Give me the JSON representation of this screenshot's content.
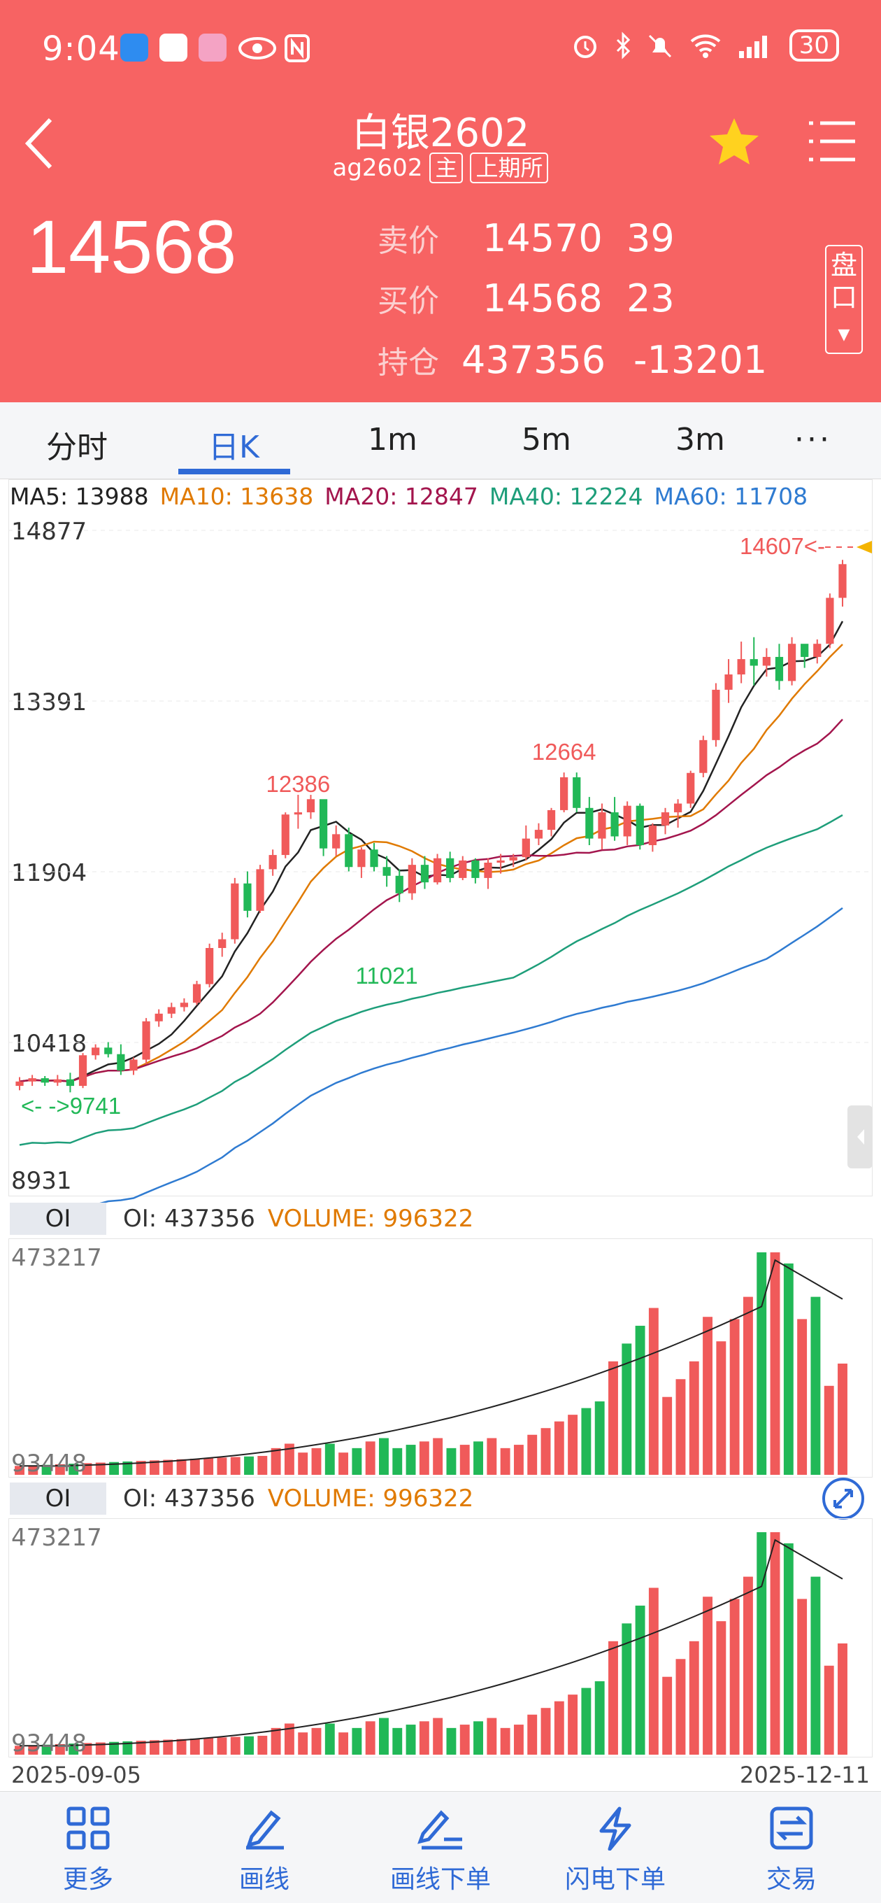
{
  "status_bar": {
    "time": "9:04",
    "battery": "30"
  },
  "header": {
    "title": "白银2602",
    "code": "ag2602",
    "tag_main": "主",
    "tag_exchange": "上期所",
    "menu_icon": "menu-icon",
    "star_icon": "star-icon"
  },
  "quote": {
    "last_price": "14568",
    "rows": [
      {
        "label": "卖价",
        "price": "14570",
        "qty": "39"
      },
      {
        "label": "买价",
        "price": "14568",
        "qty": "23"
      },
      {
        "label": "持仓",
        "price": "437356",
        "qty": "-13201"
      }
    ],
    "pan_label": "盘口"
  },
  "tabs": [
    "分时",
    "日K",
    "1m",
    "5m",
    "3m",
    "···"
  ],
  "ma_legend": [
    {
      "label": "MA5: 13988",
      "color": "#222222"
    },
    {
      "label": "MA10: 13638",
      "color": "#e07a00"
    },
    {
      "label": "MA20: 12847",
      "color": "#a3154d"
    },
    {
      "label": "MA40: 12224",
      "color": "#1e9e7a"
    },
    {
      "label": "MA60: 11708",
      "color": "#2f7bd1"
    }
  ],
  "colors": {
    "up": "#f05a5a",
    "down": "#21b857",
    "header": "#f76363",
    "accent": "#2f6ad6"
  },
  "chart_data": {
    "type": "candlestick",
    "y_ticks": [
      "14877",
      "13391",
      "11904",
      "10418",
      "8931"
    ],
    "ylim": [
      8931,
      14877
    ],
    "annotations": {
      "high_1": "12386",
      "high_2": "12664",
      "low_1": "11021",
      "low_start": "<- ->9741",
      "last_marker": "14607<-"
    },
    "candles": [
      [
        9800,
        9880,
        9760,
        9840
      ],
      [
        9840,
        9900,
        9800,
        9870
      ],
      [
        9870,
        9890,
        9800,
        9830
      ],
      [
        9830,
        9900,
        9800,
        9860
      ],
      [
        9860,
        9920,
        9741,
        9800
      ],
      [
        9800,
        10100,
        9780,
        10080
      ],
      [
        10080,
        10180,
        10040,
        10150
      ],
      [
        10150,
        10200,
        10060,
        10090
      ],
      [
        10090,
        10180,
        9900,
        9940
      ],
      [
        9940,
        10060,
        9900,
        10040
      ],
      [
        10040,
        10420,
        10000,
        10390
      ],
      [
        10390,
        10500,
        10340,
        10460
      ],
      [
        10460,
        10560,
        10420,
        10520
      ],
      [
        10520,
        10600,
        10480,
        10560
      ],
      [
        10560,
        10760,
        10540,
        10730
      ],
      [
        10730,
        11100,
        10700,
        11060
      ],
      [
        11060,
        11200,
        10980,
        11140
      ],
      [
        11140,
        11700,
        11100,
        11650
      ],
      [
        11650,
        11760,
        11340,
        11400
      ],
      [
        11400,
        11820,
        11380,
        11780
      ],
      [
        11780,
        11960,
        11720,
        11910
      ],
      [
        11910,
        12300,
        11880,
        12280
      ],
      [
        12280,
        12460,
        12150,
        12300
      ],
      [
        12300,
        12460,
        12240,
        12420
      ],
      [
        12420,
        12386,
        11900,
        11970
      ],
      [
        11970,
        12180,
        11900,
        12100
      ],
      [
        12100,
        12160,
        11760,
        11800
      ],
      [
        11800,
        11980,
        11700,
        11960
      ],
      [
        11960,
        12020,
        11760,
        11800
      ],
      [
        11800,
        11900,
        11620,
        11720
      ],
      [
        11720,
        11780,
        11480,
        11560
      ],
      [
        11560,
        11880,
        11500,
        11820
      ],
      [
        11820,
        11900,
        11600,
        11660
      ],
      [
        11660,
        11920,
        11640,
        11880
      ],
      [
        11880,
        11940,
        11660,
        11700
      ],
      [
        11700,
        11900,
        11680,
        11860
      ],
      [
        11860,
        11880,
        11650,
        11700
      ],
      [
        11700,
        11880,
        11600,
        11840
      ],
      [
        11840,
        11920,
        11740,
        11860
      ],
      [
        11860,
        11920,
        11800,
        11890
      ],
      [
        11890,
        12180,
        11860,
        12060
      ],
      [
        12060,
        12200,
        12000,
        12140
      ],
      [
        12140,
        12340,
        12080,
        12320
      ],
      [
        12320,
        12664,
        12300,
        12620
      ],
      [
        12620,
        12664,
        12300,
        12340
      ],
      [
        12340,
        12440,
        12000,
        12060
      ],
      [
        12060,
        12380,
        11960,
        12300
      ],
      [
        12300,
        12440,
        12040,
        12080
      ],
      [
        12080,
        12400,
        12000,
        12360
      ],
      [
        12360,
        12380,
        11960,
        12000
      ],
      [
        12000,
        12200,
        11940,
        12180
      ],
      [
        12180,
        12340,
        12100,
        12300
      ],
      [
        12300,
        12420,
        12160,
        12380
      ],
      [
        12380,
        12680,
        12340,
        12660
      ],
      [
        12660,
        13000,
        12620,
        12960
      ],
      [
        12960,
        13480,
        12900,
        13420
      ],
      [
        13420,
        13700,
        13300,
        13560
      ],
      [
        13560,
        13860,
        13480,
        13700
      ],
      [
        13700,
        13900,
        13460,
        13640
      ],
      [
        13640,
        13800,
        13540,
        13720
      ],
      [
        13720,
        13840,
        13420,
        13500
      ],
      [
        13500,
        13900,
        13460,
        13840
      ],
      [
        13840,
        13820,
        13620,
        13720
      ],
      [
        13720,
        13880,
        13660,
        13840
      ],
      [
        13840,
        14300,
        13800,
        14260
      ],
      [
        14260,
        14607,
        14180,
        14568
      ]
    ],
    "oi_panel": {
      "label": "OI",
      "oi": "OI: 437356",
      "volume": "VOLUME: 996322",
      "y_top": "473217",
      "y_bottom": "93448"
    },
    "x_range": [
      "2025-09-05",
      "2025-12-11"
    ]
  },
  "bottom_nav": [
    {
      "label": "更多",
      "icon": "grid-icon"
    },
    {
      "label": "画线",
      "icon": "pen-icon"
    },
    {
      "label": "画线下单",
      "icon": "draw-order-icon"
    },
    {
      "label": "闪电下单",
      "icon": "lightning-icon"
    },
    {
      "label": "交易",
      "icon": "exchange-icon"
    }
  ]
}
